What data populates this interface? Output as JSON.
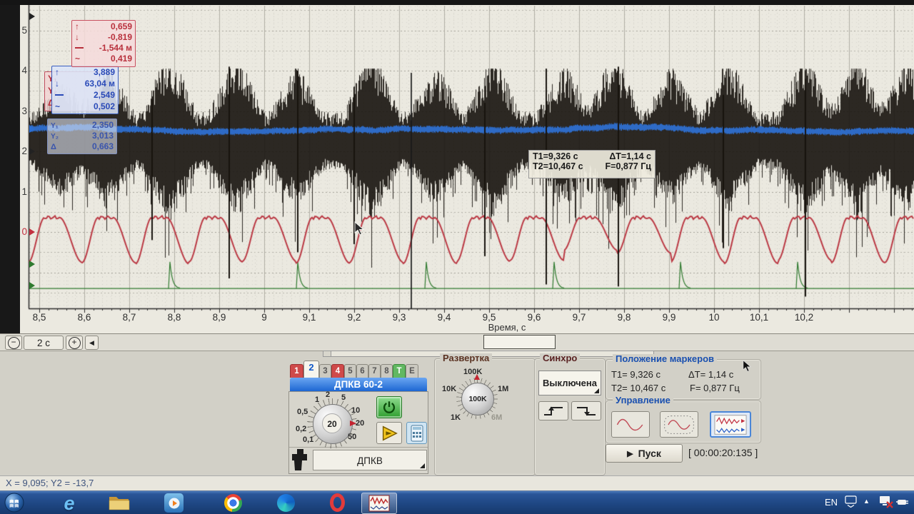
{
  "chart": {
    "x_axis_title": "Время, с",
    "stats_red": {
      "rows": [
        {
          "icon": "up-arrow-icon",
          "value": "0,659"
        },
        {
          "icon": "down-arrow-icon",
          "value": "-0,819"
        },
        {
          "icon": "avg-dashed-icon",
          "value": "-1,544 м"
        },
        {
          "icon": "ac-rms-icon",
          "value": "0,419"
        }
      ]
    },
    "stats_blue": {
      "rows": [
        {
          "icon": "up-arrow-icon",
          "value": "3,889"
        },
        {
          "icon": "down-arrow-icon",
          "value": "63,04 м"
        },
        {
          "icon": "avg-dashed-icon",
          "value": "2,549"
        },
        {
          "icon": "ac-rms-icon",
          "value": "0,502"
        }
      ]
    },
    "marker_values": {
      "rows": [
        {
          "icon": "y1-marker-icon",
          "value": "2,350"
        },
        {
          "icon": "y2-marker-icon",
          "value": "3,013"
        },
        {
          "icon": "delta-icon",
          "value": "0,663"
        }
      ]
    },
    "hidden_marker_icons": [
      "Y₁",
      "Y₂",
      "Δ"
    ],
    "annotation": {
      "t1": "T1=9,326 с",
      "dt": "ΔT=1,14 с",
      "t2": "T2=10,467 с",
      "f": "F=0,877 Гц"
    }
  },
  "chart_data": {
    "type": "line",
    "xlabel": "Время, с",
    "x_range": [
      8.47,
      10.45
    ],
    "y_visible_range": [
      -1.9,
      5.6
    ],
    "x_tick_values": [
      8.5,
      8.6,
      8.7,
      8.8,
      8.9,
      9.0,
      9.1,
      9.2,
      9.3,
      9.4,
      9.5,
      9.6,
      9.7,
      9.8,
      9.9,
      10.0,
      10.1,
      10.2
    ],
    "x_tick_labels": [
      "8,5",
      "8,6",
      "8,7",
      "8,8",
      "8,9",
      "9",
      "9,1",
      "9,2",
      "9,3",
      "9,4",
      "9,5",
      "9,6",
      "9,7",
      "9,8",
      "9,9",
      "10",
      "10,1",
      "10,2"
    ],
    "y_tick_values": [
      5,
      4,
      3,
      2,
      1,
      0
    ],
    "y_tick_labels": [
      "5",
      "4",
      "3",
      "2",
      "1",
      "0"
    ],
    "y_tick_colors": [
      "#3a3a3a",
      "#3a3a3a",
      "#3a3a3a",
      "#3a3a3a",
      "#3a3a3a",
      "#c23040"
    ],
    "grid": {
      "x_major_step": 0.1,
      "x_minor_step": 0.02,
      "y_major_step": 0.5,
      "y_minor_step": 0.1
    },
    "markers": {
      "t1_s": 9.326,
      "t2_s": 10.467,
      "dt_s": 1.14,
      "f_hz": 0.877
    },
    "channel_zero_markers": [
      {
        "v": 5.35,
        "color": "#222222"
      },
      {
        "v": 2.55,
        "color": "#2b6fd4"
      },
      {
        "v": 2.0,
        "color": "#222222"
      },
      {
        "v": 0,
        "color": "#c23040"
      },
      {
        "v": -0.8,
        "color": "#2f7a2f"
      },
      {
        "v": -1.33,
        "color": "#2f7a2f"
      }
    ],
    "series": [
      {
        "name": "ch1-vibration-black",
        "type": "noise_band",
        "color": "#1b1712",
        "center": 2.18,
        "base_amp": 0.8,
        "burst_kernel_width": 0.062,
        "bursts": [
          [
            8.548,
            0.9
          ],
          [
            8.651,
            1.3
          ],
          [
            8.789,
            1.65
          ],
          [
            8.937,
            1.6
          ],
          [
            9.071,
            1.2
          ],
          [
            9.238,
            1.7
          ],
          [
            9.381,
            1.25
          ],
          [
            9.508,
            1.6
          ],
          [
            9.667,
            1.25
          ],
          [
            9.778,
            1.65
          ],
          [
            9.905,
            1.2
          ],
          [
            10.032,
            1.45
          ],
          [
            10.202,
            1.55
          ],
          [
            10.317,
            1.6
          ],
          [
            10.428,
            1.4
          ]
        ],
        "spikes": [
          [
            8.75,
            3.3,
            -0.2
          ],
          [
            8.922,
            4.1,
            -1.15
          ],
          [
            9.075,
            4.0,
            -0.5
          ],
          [
            9.2,
            3.6,
            -0.3
          ],
          [
            9.49,
            3.2,
            -0.6
          ],
          [
            9.627,
            4.05,
            -1.3
          ],
          [
            9.787,
            4.1,
            -1.35
          ],
          [
            10.02,
            3.4,
            -0.4
          ],
          [
            10.203,
            3.8,
            -1.6
          ]
        ]
      },
      {
        "name": "ch2-reference-blue",
        "type": "noise_band",
        "color": "#2e6fd0",
        "center": 2.56,
        "half_width": 0.07
      },
      {
        "name": "ch3-signal-red",
        "type": "periodic",
        "color": "#bb3944",
        "period_s": 0.119,
        "first_valley_t": 8.595,
        "plateau_v": 0.36,
        "valley_depths": [
          -0.76,
          -0.79,
          -0.74,
          -0.72,
          -0.77,
          -0.75,
          -0.78,
          -0.73,
          -0.7,
          -0.45,
          -0.52,
          -0.74,
          -0.78,
          -0.7,
          -0.76,
          -0.75
        ]
      },
      {
        "name": "ch4-sync-green",
        "type": "pulse",
        "color": "#2f7a2f",
        "baseline": -1.4,
        "peak": -0.74,
        "times": [
          8.79,
          9.075,
          9.36,
          9.645,
          9.925,
          10.185
        ]
      }
    ]
  },
  "zoom_bar": {
    "zoom_out": "−",
    "range_label": "2 с",
    "zoom_in": "+",
    "pan_left": "◀"
  },
  "panel": {
    "channels": {
      "tabs": [
        "1",
        "2",
        "3",
        "4",
        "5",
        "6",
        "7",
        "8",
        "T",
        "E"
      ],
      "active_tab": "2",
      "title": "ДПКВ 60-2",
      "knob": {
        "value": "20",
        "scale": [
          "0,1",
          "0,2",
          "0,5",
          "1",
          "2",
          "5",
          "10",
          "20",
          "50"
        ]
      },
      "probe_selector": "ДПКВ"
    },
    "sweep": {
      "title": "Развертка",
      "knob": {
        "value": "100K",
        "scale": [
          "1K",
          "10K",
          "100K",
          "1M",
          "6M"
        ]
      }
    },
    "sync": {
      "title": "Синхро",
      "mode": "Выключена"
    },
    "markers": {
      "title": "Положение маркеров",
      "t1": "T1= 9,326 с",
      "dt": "ΔT= 1,14 с",
      "t2": "T2= 10,467 с",
      "f": "F= 0,877 Гц"
    },
    "control": {
      "title": "Управление",
      "start_icon": "▶",
      "start_label": "Пуск",
      "timer": "[ 00:00:20:135 ]"
    }
  },
  "status_bar": {
    "text": "X = 9,095; Y2 = -13,7"
  },
  "taskbar": {
    "language": "EN",
    "icons": [
      "start-orb",
      "internet-explorer",
      "file-explorer",
      "media-player",
      "chrome",
      "edge",
      "opera",
      "oscilloscope-app-active",
      "tray-keyboard",
      "tray-expand",
      "tray-network",
      "tray-power"
    ]
  }
}
